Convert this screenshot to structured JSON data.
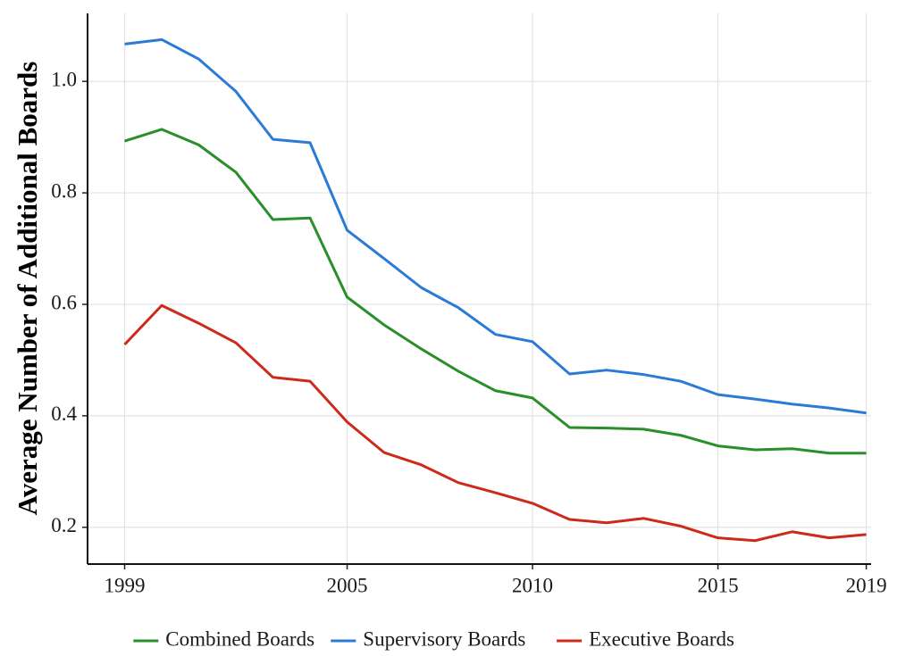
{
  "chart_data": {
    "type": "line",
    "y_label": "Average Number of Additional Boards",
    "x": [
      1999,
      2000,
      2001,
      2002,
      2003,
      2004,
      2005,
      2006,
      2007,
      2008,
      2009,
      2010,
      2011,
      2012,
      2013,
      2014,
      2015,
      2016,
      2017,
      2018,
      2019
    ],
    "series": [
      {
        "name": "Combined Boards",
        "color": "#2a8f2a",
        "values": [
          0.893,
          0.914,
          0.886,
          0.837,
          0.752,
          0.755,
          0.613,
          0.563,
          0.52,
          0.48,
          0.445,
          0.432,
          0.379,
          0.378,
          0.376,
          0.365,
          0.346,
          0.339,
          0.341,
          0.333,
          0.333
        ]
      },
      {
        "name": "Supervisory Boards",
        "color": "#2b7bd6",
        "values": [
          1.067,
          1.075,
          1.04,
          0.982,
          0.896,
          0.89,
          0.733,
          0.682,
          0.63,
          0.594,
          0.546,
          0.533,
          0.475,
          0.482,
          0.474,
          0.462,
          0.438,
          0.43,
          0.421,
          0.414,
          0.405
        ]
      },
      {
        "name": "Executive Boards",
        "color": "#cc2a1a",
        "values": [
          0.528,
          0.598,
          0.566,
          0.531,
          0.469,
          0.462,
          0.389,
          0.334,
          0.312,
          0.28,
          0.262,
          0.243,
          0.214,
          0.208,
          0.216,
          0.202,
          0.181,
          0.176,
          0.192,
          0.181,
          0.187
        ]
      }
    ],
    "xlim": [
      1998,
      2019.13
    ],
    "xticks": [
      1999,
      2005,
      2010,
      2015,
      2019
    ],
    "ylim": [
      0.134,
      1.122
    ],
    "yticks": [
      0.2,
      0.4,
      0.6,
      0.8,
      {
        "value": 1.0,
        "label": "1.0"
      }
    ],
    "grid": true,
    "legend": "bottom"
  }
}
